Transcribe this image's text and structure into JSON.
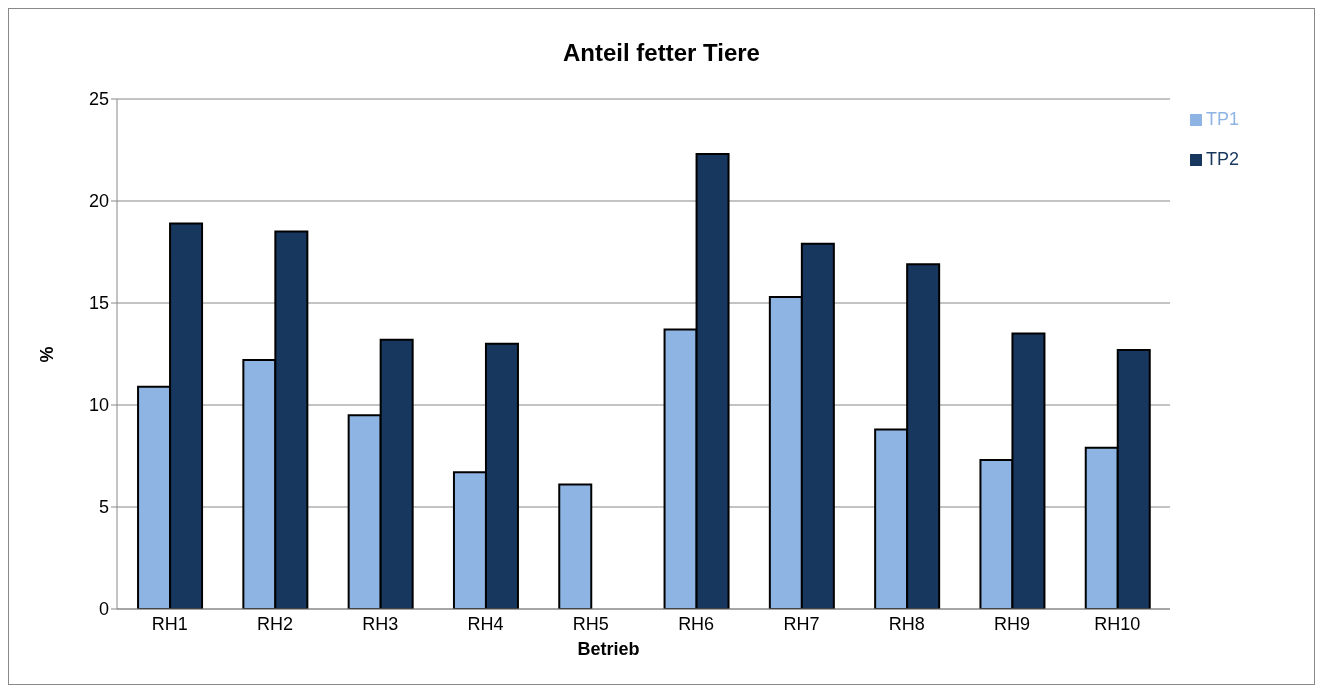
{
  "chart_data": {
    "type": "bar",
    "title": "Anteil fetter Tiere",
    "xlabel": "Betrieb",
    "ylabel": "%",
    "categories": [
      "RH1",
      "RH2",
      "RH3",
      "RH4",
      "RH5",
      "RH6",
      "RH7",
      "RH8",
      "RH9",
      "RH10"
    ],
    "series": [
      {
        "name": "TP1",
        "color": "#8eb4e3",
        "values": [
          10.9,
          12.2,
          9.5,
          6.7,
          6.1,
          13.7,
          15.3,
          8.8,
          7.3,
          7.9
        ]
      },
      {
        "name": "TP2",
        "color": "#17375e",
        "values": [
          18.9,
          18.5,
          13.2,
          13.0,
          null,
          22.3,
          17.9,
          16.9,
          13.5,
          12.7
        ]
      }
    ],
    "ylim": [
      0,
      25
    ],
    "yticks": [
      0,
      5,
      10,
      15,
      20,
      25
    ],
    "grid": "y",
    "legend": "right"
  }
}
